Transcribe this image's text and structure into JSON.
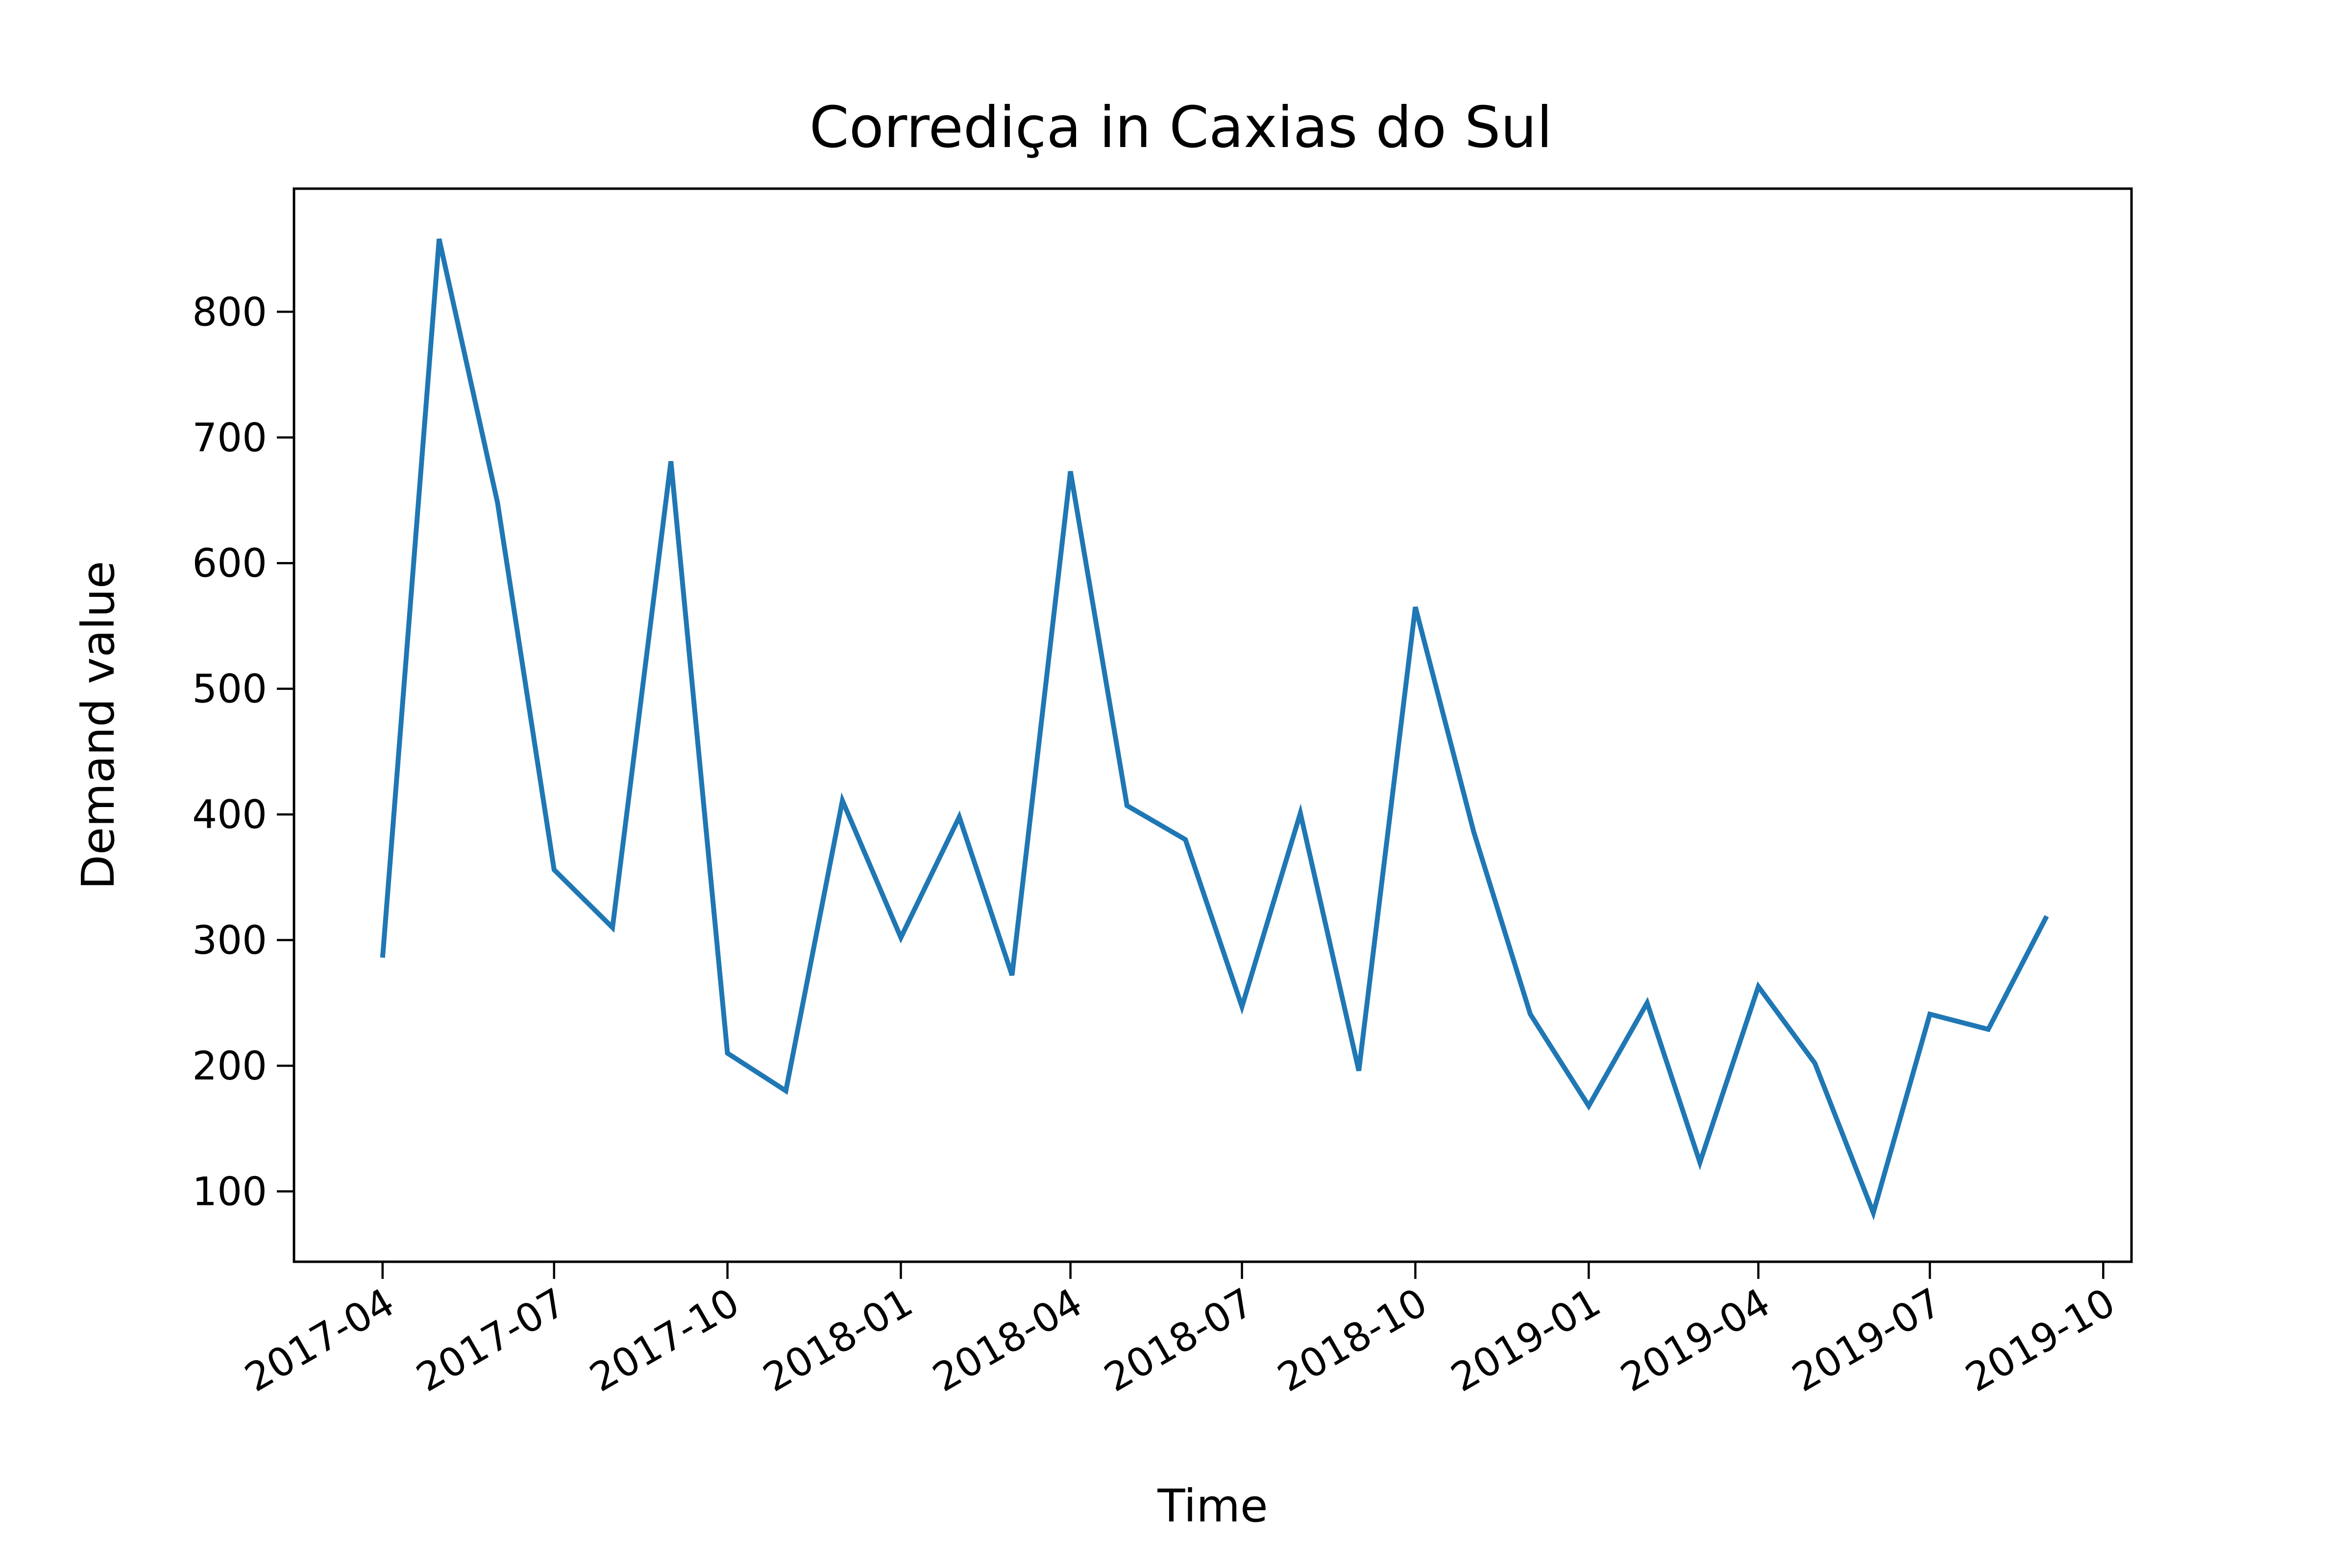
{
  "chart_data": {
    "type": "line",
    "title": "Corrediça in Caxias do Sul",
    "xlabel": "Time",
    "ylabel": "Demand value",
    "xlim": [
      "2017-02-13",
      "2019-10-16"
    ],
    "ylim": [
      44,
      898
    ],
    "grid": false,
    "line_color": "#1f77b4",
    "x_ticks": [
      "2017-04",
      "2017-07",
      "2017-10",
      "2018-01",
      "2018-04",
      "2018-07",
      "2018-10",
      "2019-01",
      "2019-04",
      "2019-07",
      "2019-10"
    ],
    "y_ticks": [
      100,
      200,
      300,
      400,
      500,
      600,
      700,
      800
    ],
    "series": [
      {
        "x": [
          "2017-04-01",
          "2017-05-01",
          "2017-06-01",
          "2017-07-01",
          "2017-08-01",
          "2017-09-01",
          "2017-10-01",
          "2017-11-01",
          "2017-12-01",
          "2018-01-01",
          "2018-02-01",
          "2018-03-01",
          "2018-04-01",
          "2018-05-01",
          "2018-06-01",
          "2018-07-01",
          "2018-08-01",
          "2018-09-01",
          "2018-10-01",
          "2018-11-01",
          "2018-12-01",
          "2019-01-01",
          "2019-02-01",
          "2019-03-01",
          "2019-04-01",
          "2019-05-01",
          "2019-06-01",
          "2019-07-01",
          "2019-08-01",
          "2019-09-01"
        ],
        "values": [
          286,
          858,
          648,
          356,
          310,
          681,
          210,
          180,
          411,
          302,
          398,
          272,
          673,
          407,
          380,
          247,
          401,
          196,
          565,
          386,
          241,
          168,
          250,
          123,
          263,
          202,
          83,
          241,
          229,
          319
        ]
      }
    ]
  }
}
